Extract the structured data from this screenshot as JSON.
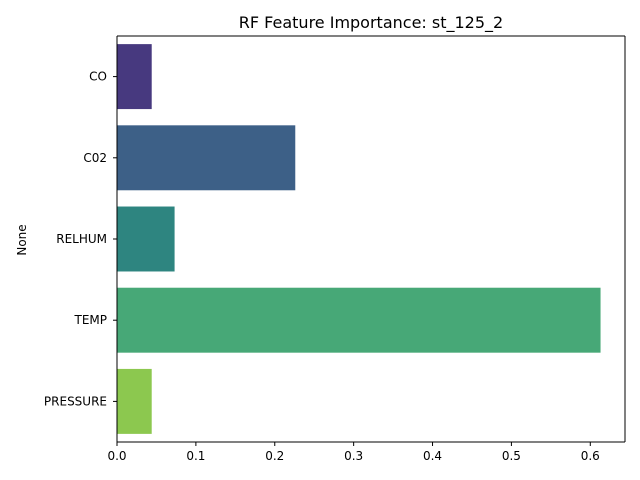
{
  "chart_data": {
    "type": "bar",
    "orientation": "horizontal",
    "title": "RF Feature Importance: st_125_2",
    "xlabel": "",
    "ylabel": "None",
    "categories": [
      "CO",
      "C02",
      "RELHUM",
      "TEMP",
      "PRESSURE"
    ],
    "values": [
      0.044,
      0.226,
      0.073,
      0.613,
      0.044
    ],
    "colors": [
      "#47397f",
      "#3d6087",
      "#2e8580",
      "#47a877",
      "#8cc84f"
    ],
    "xlim": [
      0,
      0.644
    ],
    "xticks": [
      0.0,
      0.1,
      0.2,
      0.3,
      0.4,
      0.5,
      0.6
    ],
    "xtick_labels": [
      "0.0",
      "0.1",
      "0.2",
      "0.3",
      "0.4",
      "0.5",
      "0.6"
    ],
    "grid": false,
    "legend": "none"
  }
}
